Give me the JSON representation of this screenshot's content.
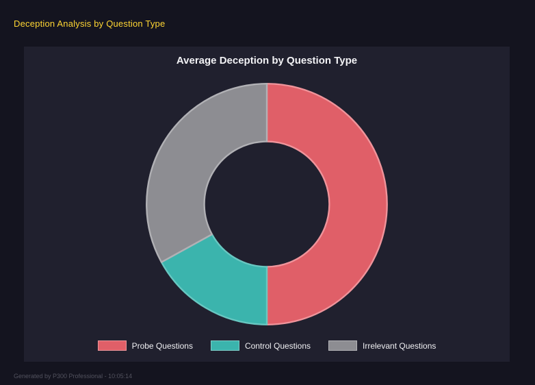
{
  "header": {
    "title": "Deception Analysis by Question Type"
  },
  "footer": {
    "text": "Generated by P300 Professional - 10:05:14"
  },
  "chart_data": {
    "type": "pie",
    "variant": "donut",
    "title": "Average Deception by Question Type",
    "categories": [
      "Probe Questions",
      "Control Questions",
      "Irrelevant Questions"
    ],
    "values": [
      50,
      17,
      33
    ],
    "value_unit": "percent_share_estimated",
    "colors": [
      "#e05f68",
      "#3bb4ad",
      "#8d8d92"
    ],
    "border_colors": [
      "#ef949b",
      "#68c7c1",
      "#b1b1b5"
    ],
    "inner_radius_ratio": 0.52,
    "start_angle_deg": 0,
    "direction": "clockwise",
    "legend_position": "bottom",
    "background": "#20202e",
    "page_background": "#14141f",
    "accent_title_color": "#ffd633"
  }
}
